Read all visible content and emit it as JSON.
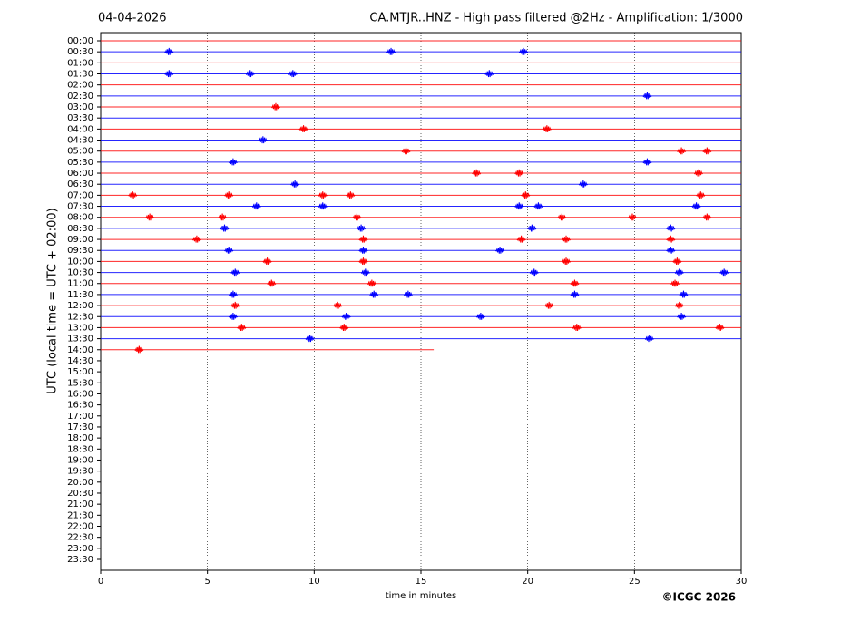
{
  "chart_data": {
    "type": "helicorder",
    "date": "04-04-2026",
    "title": "CA.MTJR..HNZ - High pass filtered @2Hz - Amplification: 1/3000",
    "ylabel": "UTC (local time = UTC + 02:00)",
    "xlabel": "time in minutes",
    "copyright": "©ICGC 2026",
    "xlim": [
      0,
      30
    ],
    "xticks": [
      0,
      5,
      10,
      15,
      20,
      25,
      30
    ],
    "grid": true,
    "rows": [
      "00:00",
      "00:30",
      "01:00",
      "01:30",
      "02:00",
      "02:30",
      "03:00",
      "03:30",
      "04:00",
      "04:30",
      "05:00",
      "05:30",
      "06:00",
      "06:30",
      "07:00",
      "07:30",
      "08:00",
      "08:30",
      "09:00",
      "09:30",
      "10:00",
      "10:30",
      "11:00",
      "11:30",
      "12:00",
      "12:30",
      "13:00",
      "13:30",
      "14:00",
      "14:30",
      "15:00",
      "15:30",
      "16:00",
      "16:30",
      "17:00",
      "17:30",
      "18:00",
      "18:30",
      "19:00",
      "19:30",
      "20:00",
      "20:30",
      "21:00",
      "21:30",
      "22:00",
      "22:30",
      "23:00",
      "23:30"
    ],
    "traces": [
      {
        "color": "#ff0000",
        "end": 30,
        "events": []
      },
      {
        "color": "#0000ff",
        "end": 30,
        "events": [
          3.2,
          13.6,
          19.8
        ]
      },
      {
        "color": "#ff0000",
        "end": 30,
        "events": []
      },
      {
        "color": "#0000ff",
        "end": 30,
        "events": [
          3.2,
          7,
          9,
          18.2
        ]
      },
      {
        "color": "#ff0000",
        "end": 30,
        "events": []
      },
      {
        "color": "#0000ff",
        "end": 30,
        "events": [
          25.6
        ]
      },
      {
        "color": "#ff0000",
        "end": 30,
        "events": [
          8.2
        ]
      },
      {
        "color": "#0000ff",
        "end": 30,
        "events": []
      },
      {
        "color": "#ff0000",
        "end": 30,
        "events": [
          9.5,
          20.9
        ]
      },
      {
        "color": "#0000ff",
        "end": 30,
        "events": [
          7.6
        ]
      },
      {
        "color": "#ff0000",
        "end": 30,
        "events": [
          14.3,
          27.2,
          28.4
        ]
      },
      {
        "color": "#0000ff",
        "end": 30,
        "events": [
          6.2,
          25.6
        ]
      },
      {
        "color": "#ff0000",
        "end": 30,
        "events": [
          17.6,
          19.6,
          28
        ]
      },
      {
        "color": "#0000ff",
        "end": 30,
        "events": [
          9.1,
          22.6
        ]
      },
      {
        "color": "#ff0000",
        "end": 30,
        "events": [
          1.5,
          6,
          10.4,
          11.7,
          19.9,
          28.1
        ]
      },
      {
        "color": "#0000ff",
        "end": 30,
        "events": [
          7.3,
          10.4,
          19.6,
          20.5,
          27.9
        ]
      },
      {
        "color": "#ff0000",
        "end": 30,
        "events": [
          2.3,
          5.7,
          12,
          21.6,
          24.9,
          28.4
        ]
      },
      {
        "color": "#0000ff",
        "end": 30,
        "events": [
          5.8,
          12.2,
          20.2,
          26.7
        ]
      },
      {
        "color": "#ff0000",
        "end": 30,
        "events": [
          4.5,
          12.3,
          19.7,
          21.8,
          26.7
        ]
      },
      {
        "color": "#0000ff",
        "end": 30,
        "events": [
          6,
          12.3,
          18.7,
          26.7
        ]
      },
      {
        "color": "#ff0000",
        "end": 30,
        "events": [
          7.8,
          12.3,
          21.8,
          27
        ]
      },
      {
        "color": "#0000ff",
        "end": 30,
        "events": [
          6.3,
          12.4,
          20.3,
          27.1,
          29.2
        ]
      },
      {
        "color": "#ff0000",
        "end": 30,
        "events": [
          8,
          12.7,
          22.2,
          26.9
        ]
      },
      {
        "color": "#0000ff",
        "end": 30,
        "events": [
          6.2,
          12.8,
          14.4,
          22.2,
          27.3
        ]
      },
      {
        "color": "#ff0000",
        "end": 30,
        "events": [
          6.3,
          11.1,
          21,
          27.1
        ]
      },
      {
        "color": "#0000ff",
        "end": 30,
        "events": [
          6.2,
          11.5,
          17.8,
          27.2
        ]
      },
      {
        "color": "#ff0000",
        "end": 30,
        "events": [
          6.6,
          11.4,
          22.3,
          29
        ]
      },
      {
        "color": "#0000ff",
        "end": 30,
        "events": [
          9.8,
          25.7
        ]
      },
      {
        "color": "#ff0000",
        "end": 15.6,
        "events": [
          1.8
        ]
      }
    ]
  }
}
